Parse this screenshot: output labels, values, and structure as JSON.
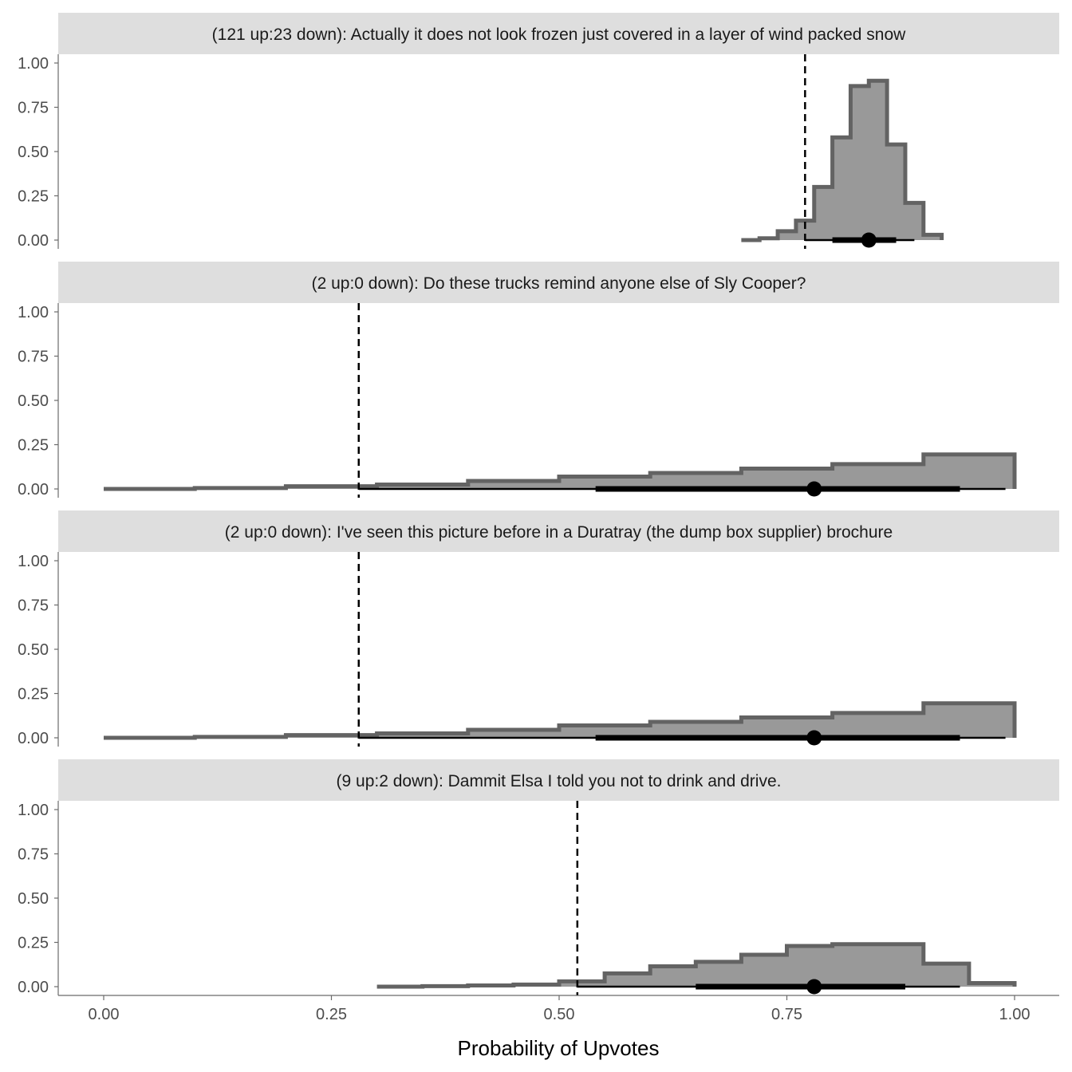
{
  "chart_data": {
    "type": "step-histogram",
    "xlabel": "Probability of Upvotes",
    "ylabel": "",
    "xlim": [
      0,
      1
    ],
    "ylim": [
      0,
      1
    ],
    "x_ticks": [
      "0.00",
      "0.25",
      "0.50",
      "0.75",
      "1.00"
    ],
    "y_ticks": [
      "0.00",
      "0.25",
      "0.50",
      "0.75",
      "1.00"
    ],
    "grid": false,
    "colors": {
      "fill": "#999999",
      "outline": "#636363",
      "strip": "#dedede",
      "interval": "#000000"
    },
    "panels": [
      {
        "title": "(121 up:23 down): Actually it does not look frozen just covered in a layer of wind packed snow",
        "x": [
          0.7,
          0.72,
          0.74,
          0.76,
          0.78,
          0.8,
          0.82,
          0.84,
          0.86,
          0.88,
          0.9,
          0.92
        ],
        "y": [
          0.0,
          0.01,
          0.05,
          0.11,
          0.3,
          0.58,
          0.87,
          0.9,
          0.54,
          0.21,
          0.03
        ],
        "reference_line": 0.77,
        "point": 0.84,
        "interval_thick": [
          0.8,
          0.87
        ],
        "interval_thin": [
          0.77,
          0.89
        ]
      },
      {
        "title": "(2 up:0 down): Do these trucks remind anyone else of Sly Cooper?",
        "x": [
          0.0,
          0.1,
          0.2,
          0.3,
          0.4,
          0.5,
          0.6,
          0.7,
          0.8,
          0.9,
          1.0
        ],
        "y": [
          0.0,
          0.005,
          0.015,
          0.025,
          0.045,
          0.07,
          0.09,
          0.115,
          0.14,
          0.195
        ],
        "reference_line": 0.28,
        "point": 0.78,
        "interval_thick": [
          0.54,
          0.94
        ],
        "interval_thin": [
          0.28,
          0.99
        ]
      },
      {
        "title": "(2 up:0 down): I've seen this picture before in a Duratray (the dump box supplier) brochure",
        "x": [
          0.0,
          0.1,
          0.2,
          0.3,
          0.4,
          0.5,
          0.6,
          0.7,
          0.8,
          0.9,
          1.0
        ],
        "y": [
          0.0,
          0.005,
          0.015,
          0.025,
          0.045,
          0.07,
          0.09,
          0.115,
          0.14,
          0.195
        ],
        "reference_line": 0.28,
        "point": 0.78,
        "interval_thick": [
          0.54,
          0.94
        ],
        "interval_thin": [
          0.28,
          0.99
        ]
      },
      {
        "title": "(9 up:2 down): Dammit Elsa I told you not to drink and drive.",
        "x": [
          0.3,
          0.35,
          0.4,
          0.45,
          0.5,
          0.55,
          0.6,
          0.65,
          0.7,
          0.75,
          0.8,
          0.85,
          0.9,
          0.95,
          1.0
        ],
        "y": [
          0.0,
          0.003,
          0.007,
          0.012,
          0.03,
          0.075,
          0.115,
          0.14,
          0.18,
          0.23,
          0.24,
          0.24,
          0.13,
          0.02
        ],
        "reference_line": 0.52,
        "point": 0.78,
        "interval_thick": [
          0.65,
          0.88
        ],
        "interval_thin": [
          0.52,
          0.94
        ]
      }
    ]
  }
}
